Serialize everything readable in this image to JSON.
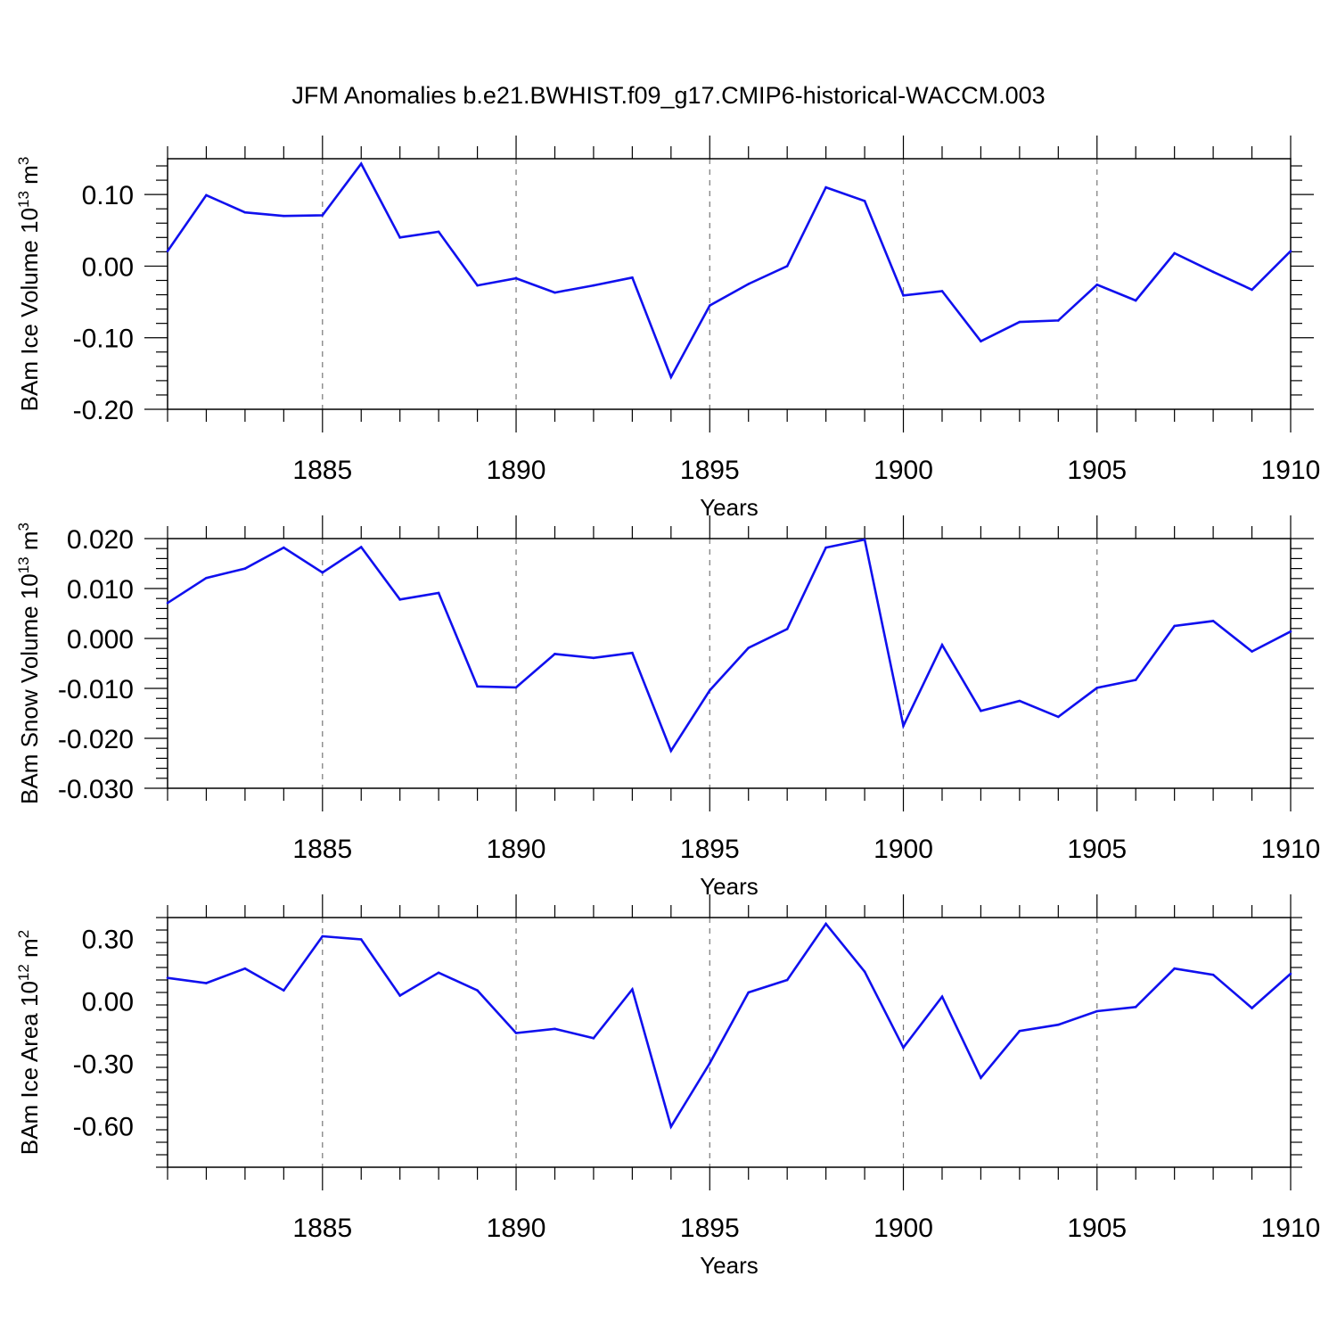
{
  "figure": {
    "title": "JFM Anomalies b.e21.BWHIST.f09_g17.CMIP6-historical-WACCM.003"
  },
  "colors": {
    "line": "#1010ee",
    "axis": "#000000",
    "grid": "#777777"
  },
  "chart_data": [
    {
      "type": "line",
      "ylabel": "BAm Ice Volume 10",
      "ylabel_sup": "13",
      "ylabel_unit": " m",
      "ylabel_unit_sup": "3",
      "xlabel": "Years",
      "xlim": [
        1881,
        1910
      ],
      "ylim": [
        -0.2,
        0.15
      ],
      "yticks": [
        -0.2,
        -0.1,
        0.0,
        0.1
      ],
      "ytick_labels": [
        "-0.20",
        "-0.10",
        "0.00",
        "0.10"
      ],
      "xticks": [
        1885,
        1890,
        1895,
        1900,
        1905,
        1910
      ],
      "xtick_labels": [
        "1885",
        "1890",
        "1895",
        "1900",
        "1905",
        "1910"
      ],
      "grid": "vertical dashed at labeled years",
      "series": [
        {
          "x": [
            1881,
            1882,
            1883,
            1884,
            1885,
            1886,
            1887,
            1888,
            1889,
            1890,
            1891,
            1892,
            1893,
            1894,
            1895,
            1896,
            1897,
            1898,
            1899,
            1900,
            1901,
            1902,
            1903,
            1904,
            1905,
            1906,
            1907,
            1908,
            1909,
            1910
          ],
          "values": [
            0.021,
            0.099,
            0.075,
            0.07,
            0.071,
            0.143,
            0.04,
            0.048,
            -0.027,
            -0.017,
            -0.037,
            -0.027,
            -0.016,
            -0.155,
            -0.055,
            -0.025,
            0.0,
            0.11,
            0.091,
            -0.041,
            -0.035,
            -0.105,
            -0.078,
            -0.076,
            -0.026,
            -0.048,
            0.018,
            -0.008,
            -0.033,
            0.021
          ]
        }
      ]
    },
    {
      "type": "line",
      "ylabel": "BAm Snow Volume 10",
      "ylabel_sup": "13",
      "ylabel_unit": " m",
      "ylabel_unit_sup": "3",
      "xlabel": "Years",
      "xlim": [
        1881,
        1910
      ],
      "ylim": [
        -0.03,
        0.02
      ],
      "yticks": [
        -0.03,
        -0.02,
        -0.01,
        0.0,
        0.01,
        0.02
      ],
      "ytick_labels": [
        "-0.030",
        "-0.020",
        "-0.010",
        "0.000",
        "0.010",
        "0.020"
      ],
      "xticks": [
        1885,
        1890,
        1895,
        1900,
        1905,
        1910
      ],
      "xtick_labels": [
        "1885",
        "1890",
        "1895",
        "1900",
        "1905",
        "1910"
      ],
      "grid": "vertical dashed at labeled years",
      "series": [
        {
          "x": [
            1881,
            1882,
            1883,
            1884,
            1885,
            1886,
            1887,
            1888,
            1889,
            1890,
            1891,
            1892,
            1893,
            1894,
            1895,
            1896,
            1897,
            1898,
            1899,
            1900,
            1901,
            1902,
            1903,
            1904,
            1905,
            1906,
            1907,
            1908,
            1909,
            1910
          ],
          "values": [
            0.0071,
            0.0121,
            0.014,
            0.0182,
            0.0132,
            0.0183,
            0.0078,
            0.0091,
            -0.0096,
            -0.0098,
            -0.0031,
            -0.0039,
            -0.0029,
            -0.0225,
            -0.0104,
            -0.0019,
            0.0019,
            0.0182,
            0.0198,
            -0.0175,
            -0.0013,
            -0.0145,
            -0.0125,
            -0.0157,
            -0.0099,
            -0.0083,
            0.0025,
            0.0035,
            -0.0026,
            0.0014
          ]
        }
      ]
    },
    {
      "type": "line",
      "ylabel": "BAm Ice Area 10",
      "ylabel_sup": "12",
      "ylabel_unit": " m",
      "ylabel_unit_sup": "2",
      "xlabel": "Years",
      "xlim": [
        1881,
        1910
      ],
      "ylim": [
        -0.8,
        0.4
      ],
      "yticks": [
        -0.6,
        -0.3,
        0.0,
        0.3
      ],
      "ytick_labels": [
        "-0.60",
        "-0.30",
        "0.00",
        "0.30"
      ],
      "xticks": [
        1885,
        1890,
        1895,
        1900,
        1905,
        1910
      ],
      "xtick_labels": [
        "1885",
        "1890",
        "1895",
        "1900",
        "1905",
        "1910"
      ],
      "grid": "vertical dashed at labeled years",
      "series": [
        {
          "x": [
            1881,
            1882,
            1883,
            1884,
            1885,
            1886,
            1887,
            1888,
            1889,
            1890,
            1891,
            1892,
            1893,
            1894,
            1895,
            1896,
            1897,
            1898,
            1899,
            1900,
            1901,
            1902,
            1903,
            1904,
            1905,
            1906,
            1907,
            1908,
            1909,
            1910
          ],
          "values": [
            0.11,
            0.085,
            0.155,
            0.05,
            0.31,
            0.295,
            0.025,
            0.135,
            0.05,
            -0.155,
            -0.135,
            -0.18,
            0.055,
            -0.605,
            -0.3,
            0.04,
            0.1,
            0.37,
            0.14,
            -0.225,
            0.02,
            -0.37,
            -0.145,
            -0.115,
            -0.05,
            -0.03,
            0.155,
            0.125,
            -0.035,
            0.13
          ]
        }
      ]
    }
  ]
}
